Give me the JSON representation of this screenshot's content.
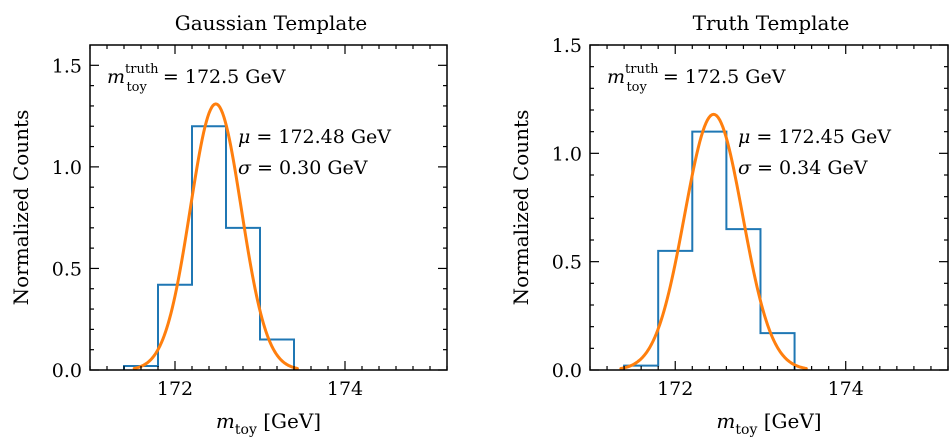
{
  "colors": {
    "histogram": "#1f77b4",
    "fit": "#ff7f0e"
  },
  "chart_data": [
    {
      "type": "bar",
      "title": "Gaussian Template",
      "xlabel": "m_toy [GeV]",
      "ylabel": "Normalized Counts",
      "xlim": [
        171,
        175.2
      ],
      "ylim": [
        0,
        1.6
      ],
      "xticks": [
        172,
        174
      ],
      "xtick_labels": [
        "172",
        "174"
      ],
      "yticks": [
        0,
        0.5,
        1.0,
        1.5
      ],
      "ytick_labels": [
        "0.0",
        "0.5",
        "1.0",
        "1.5"
      ],
      "histogram": {
        "name": "Gaussian Template",
        "bin_edges": [
          171.4,
          171.8,
          172.2,
          172.6,
          173.0,
          173.4
        ],
        "values": [
          0.02,
          0.42,
          1.2,
          0.7,
          0.15
        ]
      },
      "fit": {
        "name": "Gaussian fit",
        "mu": 172.48,
        "sigma": 0.3,
        "amplitude": 1.31
      },
      "annotations": {
        "truth_symbol": "m",
        "truth_sup": "truth",
        "truth_sub": "toy",
        "truth_value": "= 172.5 GeV",
        "mu_symbol": "μ",
        "mu_value": "= 172.48 GeV",
        "sigma_symbol": "σ",
        "sigma_value": "= 0.30 GeV"
      }
    },
    {
      "type": "bar",
      "title": "Truth Template",
      "xlabel": "m_toy [GeV]",
      "ylabel": "Normalized Counts",
      "xlim": [
        171,
        175.2
      ],
      "ylim": [
        0,
        1.5
      ],
      "xticks": [
        172,
        174
      ],
      "xtick_labels": [
        "172",
        "174"
      ],
      "yticks": [
        0,
        0.5,
        1.0,
        1.5
      ],
      "ytick_labels": [
        "0.0",
        "0.5",
        "1.0",
        "1.5"
      ],
      "histogram": {
        "name": "Truth Template",
        "bin_edges": [
          171.4,
          171.8,
          172.2,
          172.6,
          173.0,
          173.4
        ],
        "values": [
          0.02,
          0.55,
          1.1,
          0.65,
          0.17
        ]
      },
      "fit": {
        "name": "Gaussian fit",
        "mu": 172.45,
        "sigma": 0.34,
        "amplitude": 1.18
      },
      "annotations": {
        "truth_symbol": "m",
        "truth_sup": "truth",
        "truth_sub": "toy",
        "truth_value": "= 172.5 GeV",
        "mu_symbol": "μ",
        "mu_value": "= 172.45 GeV",
        "sigma_symbol": "σ",
        "sigma_value": "= 0.34 GeV"
      }
    }
  ],
  "xlabel_parts": {
    "symbol": "m",
    "sub": "toy",
    "unit": "[GeV]"
  }
}
